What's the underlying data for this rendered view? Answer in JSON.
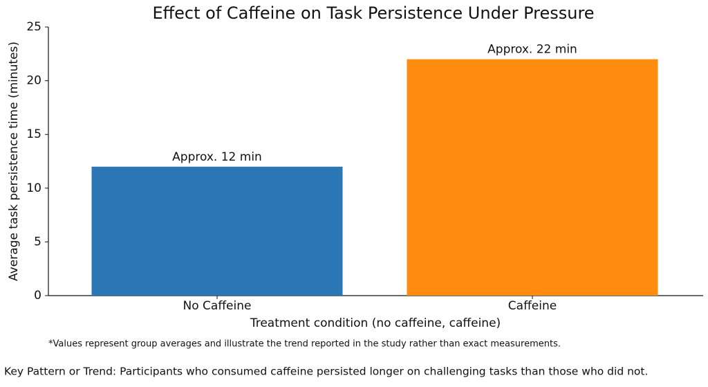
{
  "chart_data": {
    "type": "bar",
    "title": "Effect of Caffeine on Task Persistence Under Pressure",
    "categories": [
      "No Caffeine",
      "Caffeine"
    ],
    "values": [
      12,
      22
    ],
    "value_labels": [
      "Approx. 12 min",
      "Approx. 22 min"
    ],
    "colors": [
      "#2b77b5",
      "#ff8c0f"
    ],
    "xlabel": "Treatment condition (no caffeine, caffeine)",
    "ylabel": "Average task persistence time (minutes)",
    "ylim": [
      0,
      25
    ],
    "yticks": [
      0,
      5,
      10,
      15,
      20,
      25
    ],
    "grid": false,
    "footnote": "*Values represent group averages and illustrate the trend reported in the study rather than exact measurements.",
    "caption": "Key Pattern or Trend: Participants who consumed caffeine persisted longer on challenging tasks than those who did not."
  }
}
